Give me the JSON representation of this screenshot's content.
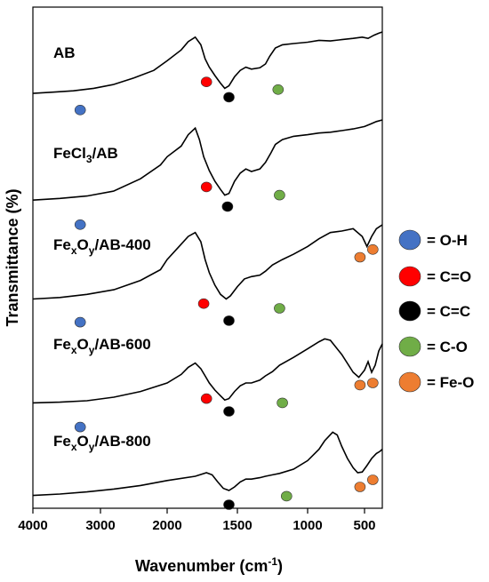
{
  "chart_data": {
    "type": "line",
    "xlabel": "Wavenumber (cm",
    "xlabel_sup": "-1",
    "xlabel_end": ")",
    "ylabel": "Transmittance (%)",
    "xlim": [
      4000,
      350
    ],
    "x_ticks": [
      4000,
      3000,
      2000,
      1500,
      1000,
      500
    ],
    "x_tick_labels": [
      "4000",
      "3000",
      "2000",
      "1500",
      "1000",
      "500"
    ],
    "grid": false,
    "legend_position": "right",
    "legend": [
      {
        "key": "O-H",
        "label": "= O-H",
        "color": "#4472c4"
      },
      {
        "key": "C=O",
        "label": "= C=O",
        "color": "#ff0000"
      },
      {
        "key": "C=C",
        "label": "= C=C",
        "color": "#000000"
      },
      {
        "key": "C-O",
        "label": "= C-O",
        "color": "#70ad47"
      },
      {
        "key": "Fe-O",
        "label": "= Fe-O",
        "color": "#ed7d31"
      }
    ],
    "series": [
      {
        "name": "AB",
        "name_parts": [
          [
            "AB",
            ""
          ]
        ],
        "points": [
          [
            4000,
            0.04
          ],
          [
            3700,
            0.06
          ],
          [
            3400,
            0.08
          ],
          [
            3100,
            0.12
          ],
          [
            2800,
            0.18
          ],
          [
            2500,
            0.28
          ],
          [
            2200,
            0.4
          ],
          [
            2000,
            0.55
          ],
          [
            1900,
            0.72
          ],
          [
            1850,
            0.85
          ],
          [
            1800,
            0.92
          ],
          [
            1760,
            0.8
          ],
          [
            1730,
            0.58
          ],
          [
            1700,
            0.45
          ],
          [
            1660,
            0.32
          ],
          [
            1620,
            0.2
          ],
          [
            1590,
            0.12
          ],
          [
            1560,
            0.16
          ],
          [
            1520,
            0.3
          ],
          [
            1480,
            0.4
          ],
          [
            1440,
            0.45
          ],
          [
            1400,
            0.42
          ],
          [
            1340,
            0.44
          ],
          [
            1300,
            0.5
          ],
          [
            1270,
            0.62
          ],
          [
            1230,
            0.75
          ],
          [
            1180,
            0.8
          ],
          [
            1100,
            0.82
          ],
          [
            1000,
            0.84
          ],
          [
            900,
            0.87
          ],
          [
            800,
            0.86
          ],
          [
            700,
            0.88
          ],
          [
            600,
            0.9
          ],
          [
            520,
            0.92
          ],
          [
            470,
            0.9
          ],
          [
            420,
            0.95
          ],
          [
            380,
            0.98
          ],
          [
            350,
            1.0
          ]
        ],
        "peaks": [
          {
            "type": "O-H",
            "x": 3300,
            "y": -0.22
          },
          {
            "type": "C=O",
            "x": 1720,
            "y": 0.22
          },
          {
            "type": "C=C",
            "x": 1560,
            "y": -0.02
          },
          {
            "type": "C-O",
            "x": 1210,
            "y": 0.1
          }
        ]
      },
      {
        "name": "FeCl3/AB",
        "name_parts": [
          [
            "FeCl",
            ""
          ],
          [
            "3",
            "sub"
          ],
          [
            "/AB",
            ""
          ]
        ],
        "points": [
          [
            4000,
            0.02
          ],
          [
            3600,
            0.04
          ],
          [
            3200,
            0.07
          ],
          [
            2800,
            0.13
          ],
          [
            2400,
            0.28
          ],
          [
            2100,
            0.45
          ],
          [
            2000,
            0.55
          ],
          [
            1900,
            0.68
          ],
          [
            1850,
            0.82
          ],
          [
            1800,
            0.9
          ],
          [
            1770,
            0.76
          ],
          [
            1740,
            0.55
          ],
          [
            1700,
            0.38
          ],
          [
            1660,
            0.25
          ],
          [
            1620,
            0.15
          ],
          [
            1590,
            0.08
          ],
          [
            1560,
            0.1
          ],
          [
            1520,
            0.25
          ],
          [
            1480,
            0.35
          ],
          [
            1440,
            0.4
          ],
          [
            1400,
            0.37
          ],
          [
            1340,
            0.4
          ],
          [
            1300,
            0.48
          ],
          [
            1260,
            0.6
          ],
          [
            1230,
            0.7
          ],
          [
            1180,
            0.76
          ],
          [
            1100,
            0.8
          ],
          [
            1000,
            0.82
          ],
          [
            900,
            0.84
          ],
          [
            800,
            0.85
          ],
          [
            700,
            0.87
          ],
          [
            600,
            0.89
          ],
          [
            500,
            0.92
          ],
          [
            450,
            0.95
          ],
          [
            400,
            0.98
          ],
          [
            350,
            1.0
          ]
        ],
        "peaks": [
          {
            "type": "O-H",
            "x": 3300,
            "y": -0.28
          },
          {
            "type": "C=O",
            "x": 1720,
            "y": 0.18
          },
          {
            "type": "C=C",
            "x": 1570,
            "y": -0.06
          },
          {
            "type": "C-O",
            "x": 1200,
            "y": 0.08
          }
        ]
      },
      {
        "name": "FexOy/AB-400",
        "name_parts": [
          [
            "Fe",
            ""
          ],
          [
            "x",
            "sub"
          ],
          [
            "O",
            ""
          ],
          [
            "y",
            "sub"
          ],
          [
            "/AB-400",
            ""
          ]
        ],
        "points": [
          [
            4000,
            0.04
          ],
          [
            3600,
            0.06
          ],
          [
            3200,
            0.1
          ],
          [
            2800,
            0.16
          ],
          [
            2400,
            0.28
          ],
          [
            2100,
            0.42
          ],
          [
            2000,
            0.55
          ],
          [
            1900,
            0.75
          ],
          [
            1850,
            0.85
          ],
          [
            1800,
            0.9
          ],
          [
            1760,
            0.78
          ],
          [
            1730,
            0.55
          ],
          [
            1700,
            0.38
          ],
          [
            1660,
            0.22
          ],
          [
            1620,
            0.1
          ],
          [
            1580,
            0.04
          ],
          [
            1550,
            0.08
          ],
          [
            1500,
            0.2
          ],
          [
            1450,
            0.3
          ],
          [
            1400,
            0.33
          ],
          [
            1340,
            0.35
          ],
          [
            1300,
            0.4
          ],
          [
            1250,
            0.48
          ],
          [
            1180,
            0.55
          ],
          [
            1100,
            0.62
          ],
          [
            1000,
            0.72
          ],
          [
            900,
            0.82
          ],
          [
            800,
            0.9
          ],
          [
            700,
            0.92
          ],
          [
            600,
            0.95
          ],
          [
            520,
            0.85
          ],
          [
            480,
            0.72
          ],
          [
            440,
            0.85
          ],
          [
            400,
            0.95
          ],
          [
            350,
            1.0
          ]
        ],
        "peaks": [
          {
            "type": "O-H",
            "x": 3300,
            "y": -0.26
          },
          {
            "type": "C=O",
            "x": 1740,
            "y": -0.02
          },
          {
            "type": "C=C",
            "x": 1560,
            "y": -0.24
          },
          {
            "type": "C-O",
            "x": 1200,
            "y": -0.08
          },
          {
            "type": "Fe-O",
            "x": 540,
            "y": 0.58
          },
          {
            "type": "Fe-O",
            "x": 430,
            "y": 0.68
          }
        ]
      },
      {
        "name": "FexOy/AB-600",
        "name_parts": [
          [
            "Fe",
            ""
          ],
          [
            "x",
            "sub"
          ],
          [
            "O",
            ""
          ],
          [
            "y",
            "sub"
          ],
          [
            "/AB-600",
            ""
          ]
        ],
        "points": [
          [
            4000,
            0.02
          ],
          [
            3600,
            0.03
          ],
          [
            3200,
            0.05
          ],
          [
            2800,
            0.1
          ],
          [
            2400,
            0.18
          ],
          [
            2000,
            0.3
          ],
          [
            1900,
            0.42
          ],
          [
            1850,
            0.52
          ],
          [
            1800,
            0.58
          ],
          [
            1760,
            0.5
          ],
          [
            1730,
            0.4
          ],
          [
            1700,
            0.3
          ],
          [
            1660,
            0.2
          ],
          [
            1620,
            0.12
          ],
          [
            1590,
            0.06
          ],
          [
            1560,
            0.08
          ],
          [
            1520,
            0.18
          ],
          [
            1480,
            0.26
          ],
          [
            1440,
            0.3
          ],
          [
            1400,
            0.3
          ],
          [
            1340,
            0.34
          ],
          [
            1300,
            0.4
          ],
          [
            1250,
            0.46
          ],
          [
            1200,
            0.55
          ],
          [
            1100,
            0.66
          ],
          [
            1000,
            0.78
          ],
          [
            900,
            0.88
          ],
          [
            850,
            0.92
          ],
          [
            800,
            0.9
          ],
          [
            700,
            0.7
          ],
          [
            600,
            0.45
          ],
          [
            550,
            0.38
          ],
          [
            500,
            0.48
          ],
          [
            470,
            0.6
          ],
          [
            440,
            0.45
          ],
          [
            410,
            0.55
          ],
          [
            380,
            0.75
          ],
          [
            350,
            0.85
          ]
        ],
        "peaks": [
          {
            "type": "O-H",
            "x": 3300,
            "y": -0.32
          },
          {
            "type": "C=O",
            "x": 1720,
            "y": 0.08
          },
          {
            "type": "C=C",
            "x": 1560,
            "y": -0.1
          },
          {
            "type": "C-O",
            "x": 1180,
            "y": 0.02
          },
          {
            "type": "Fe-O",
            "x": 540,
            "y": 0.27
          },
          {
            "type": "Fe-O",
            "x": 430,
            "y": 0.3
          }
        ]
      },
      {
        "name": "FexOy/AB-800",
        "name_parts": [
          [
            "Fe",
            ""
          ],
          [
            "x",
            "sub"
          ],
          [
            "O",
            ""
          ],
          [
            "y",
            "sub"
          ],
          [
            "/AB-800",
            ""
          ]
        ],
        "points": [
          [
            4000,
            0.03
          ],
          [
            3600,
            0.05
          ],
          [
            3200,
            0.08
          ],
          [
            2800,
            0.12
          ],
          [
            2400,
            0.17
          ],
          [
            2000,
            0.24
          ],
          [
            1800,
            0.3
          ],
          [
            1720,
            0.35
          ],
          [
            1680,
            0.32
          ],
          [
            1640,
            0.22
          ],
          [
            1600,
            0.13
          ],
          [
            1560,
            0.1
          ],
          [
            1520,
            0.15
          ],
          [
            1480,
            0.22
          ],
          [
            1440,
            0.26
          ],
          [
            1400,
            0.26
          ],
          [
            1340,
            0.28
          ],
          [
            1300,
            0.3
          ],
          [
            1250,
            0.32
          ],
          [
            1200,
            0.34
          ],
          [
            1100,
            0.4
          ],
          [
            1000,
            0.52
          ],
          [
            900,
            0.68
          ],
          [
            850,
            0.8
          ],
          [
            780,
            0.92
          ],
          [
            740,
            0.88
          ],
          [
            700,
            0.72
          ],
          [
            650,
            0.55
          ],
          [
            600,
            0.42
          ],
          [
            560,
            0.35
          ],
          [
            520,
            0.36
          ],
          [
            480,
            0.45
          ],
          [
            440,
            0.55
          ],
          [
            400,
            0.62
          ],
          [
            370,
            0.65
          ],
          [
            350,
            0.68
          ]
        ],
        "peaks": [
          {
            "type": "C=C",
            "x": 1560,
            "y": -0.1
          },
          {
            "type": "C-O",
            "x": 1150,
            "y": 0.02
          },
          {
            "type": "Fe-O",
            "x": 540,
            "y": 0.15
          },
          {
            "type": "Fe-O",
            "x": 430,
            "y": 0.25
          }
        ]
      }
    ]
  }
}
